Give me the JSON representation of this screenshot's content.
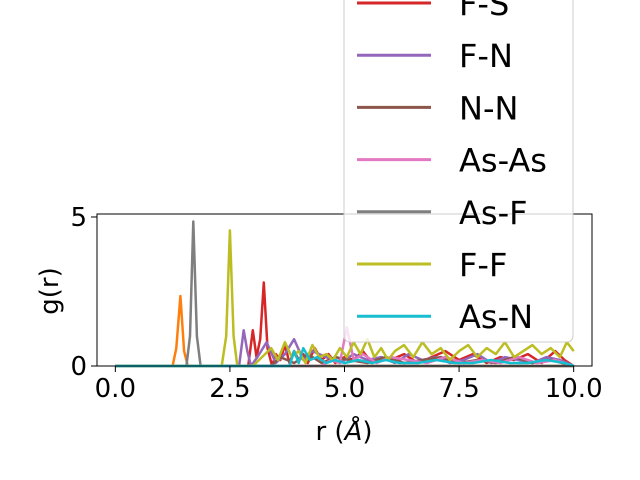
{
  "chart_data": {
    "type": "line",
    "xlabel_main": "r (",
    "xlabel_unit": "Å",
    "xlabel_close": ")",
    "ylabel": "g(r)",
    "xlim": [
      -0.4,
      10.4
    ],
    "ylim": [
      0,
      5.1
    ],
    "xticks": [
      0.0,
      2.5,
      5.0,
      7.5,
      10.0
    ],
    "xtick_labels": [
      "0.0",
      "2.5",
      "5.0",
      "7.5",
      "10.0"
    ],
    "yticks": [
      0,
      5
    ],
    "ytick_labels": [
      "0",
      "5"
    ],
    "grid": false,
    "legend_position": "upper-right",
    "series": [
      {
        "name": "",
        "color": "#1f77b4",
        "x": [
          0.0,
          10.0
        ],
        "y": [
          0.0,
          0.0
        ]
      },
      {
        "name": "",
        "color": "#ff7f0e",
        "x": [
          0.0,
          1.25,
          1.33,
          1.42,
          1.5,
          1.58,
          10.0
        ],
        "y": [
          0.0,
          0.0,
          0.6,
          2.35,
          0.5,
          0.0,
          0.0
        ]
      },
      {
        "name": "F-S",
        "color": "#d62728",
        "x": [
          0.0,
          2.9,
          3.0,
          3.08,
          3.16,
          3.24,
          3.32,
          3.42,
          3.5,
          3.6,
          3.7,
          3.8,
          3.9,
          4.0,
          4.1,
          4.2,
          4.35,
          4.5,
          4.65,
          4.8,
          5.0,
          5.2,
          5.4,
          5.6,
          5.8,
          6.0,
          6.3,
          6.6,
          6.9,
          7.2,
          7.5,
          7.8,
          8.1,
          8.4,
          8.7,
          9.0,
          9.3,
          9.6,
          9.8,
          10.0
        ],
        "y": [
          0.0,
          0.0,
          1.2,
          0.3,
          0.9,
          2.8,
          0.6,
          0.0,
          0.4,
          0.2,
          0.7,
          0.1,
          0.5,
          0.2,
          0.4,
          0.1,
          0.6,
          0.2,
          0.4,
          0.1,
          0.3,
          0.2,
          0.5,
          0.1,
          0.3,
          0.2,
          0.4,
          0.1,
          0.3,
          0.5,
          0.2,
          0.4,
          0.1,
          0.3,
          0.2,
          0.4,
          0.1,
          0.5,
          0.2,
          0.0
        ]
      },
      {
        "name": "F-N",
        "color": "#9467bd",
        "x": [
          0.0,
          2.7,
          2.8,
          2.88,
          2.96,
          3.1,
          3.3,
          3.5,
          3.7,
          3.9,
          4.1,
          4.3,
          4.6,
          4.9,
          5.2,
          5.5,
          5.8,
          6.1,
          6.4,
          6.7,
          7.0,
          7.3,
          7.6,
          7.9,
          8.2,
          8.5,
          8.8,
          9.1,
          9.4,
          9.7,
          10.0
        ],
        "y": [
          0.0,
          0.0,
          1.2,
          0.5,
          0.0,
          0.3,
          0.8,
          0.1,
          0.4,
          0.9,
          0.2,
          0.5,
          0.3,
          0.1,
          0.4,
          0.2,
          0.3,
          0.1,
          0.4,
          0.2,
          0.3,
          0.1,
          0.2,
          0.4,
          0.1,
          0.3,
          0.2,
          0.1,
          0.3,
          0.2,
          0.0
        ]
      },
      {
        "name": "N-N",
        "color": "#8c564b",
        "x": [
          0.0,
          3.4,
          3.6,
          3.9,
          4.2,
          4.5,
          4.8,
          5.1,
          5.5,
          5.9,
          6.3,
          6.7,
          7.1,
          7.5,
          7.9,
          8.3,
          8.7,
          9.1,
          9.5,
          10.0
        ],
        "y": [
          0.0,
          0.0,
          0.3,
          0.1,
          0.4,
          0.1,
          0.3,
          0.2,
          0.1,
          0.3,
          0.1,
          0.2,
          0.3,
          0.1,
          0.2,
          0.1,
          0.3,
          0.1,
          0.2,
          0.0
        ]
      },
      {
        "name": "As-As",
        "color": "#e377c2",
        "x": [
          0.0,
          4.5,
          4.7,
          4.9,
          5.05,
          5.2,
          5.4,
          5.7,
          6.0,
          6.4,
          6.8,
          7.2,
          7.6,
          8.0,
          8.4,
          8.8,
          9.2,
          9.6,
          10.0
        ],
        "y": [
          0.0,
          0.0,
          0.2,
          0.1,
          1.3,
          0.2,
          0.4,
          0.1,
          0.3,
          0.2,
          0.1,
          0.3,
          0.1,
          0.2,
          0.1,
          0.3,
          0.1,
          0.2,
          0.0
        ]
      },
      {
        "name": "As-F",
        "color": "#7f7f7f",
        "x": [
          0.0,
          1.55,
          1.63,
          1.7,
          1.78,
          1.86,
          10.0
        ],
        "y": [
          0.0,
          0.0,
          1.0,
          4.85,
          1.0,
          0.0,
          0.0
        ]
      },
      {
        "name": "F-F",
        "color": "#bcbd22",
        "x": [
          0.0,
          2.32,
          2.42,
          2.5,
          2.58,
          2.66,
          3.0,
          3.2,
          3.4,
          3.55,
          3.7,
          3.85,
          4.0,
          4.15,
          4.3,
          4.45,
          4.6,
          4.75,
          4.9,
          5.05,
          5.2,
          5.35,
          5.5,
          5.65,
          5.8,
          5.95,
          6.1,
          6.3,
          6.5,
          6.7,
          6.9,
          7.1,
          7.3,
          7.5,
          7.7,
          7.9,
          8.1,
          8.3,
          8.5,
          8.7,
          8.9,
          9.1,
          9.3,
          9.5,
          9.7,
          9.85,
          10.0
        ],
        "y": [
          0.0,
          0.0,
          1.0,
          4.55,
          1.0,
          0.0,
          0.0,
          0.3,
          0.6,
          0.2,
          0.8,
          0.3,
          0.5,
          0.1,
          0.7,
          0.3,
          0.4,
          0.2,
          0.6,
          0.3,
          0.8,
          0.4,
          0.9,
          0.3,
          0.6,
          0.2,
          0.5,
          0.7,
          0.3,
          0.8,
          0.4,
          0.6,
          0.2,
          0.5,
          0.7,
          0.3,
          0.6,
          0.4,
          0.8,
          0.3,
          0.5,
          0.7,
          0.4,
          0.6,
          0.3,
          0.8,
          0.5
        ]
      },
      {
        "name": "As-N",
        "color": "#17becf",
        "x": [
          0.0,
          3.8,
          3.9,
          4.0,
          4.1,
          4.25,
          4.4,
          4.6,
          4.8,
          5.0,
          5.3,
          5.6,
          5.9,
          6.2,
          6.6,
          7.0,
          7.4,
          7.8,
          8.2,
          8.6,
          9.0,
          9.4,
          9.8,
          10.0
        ],
        "y": [
          0.0,
          0.0,
          0.5,
          0.1,
          0.6,
          0.2,
          0.3,
          0.1,
          0.2,
          0.1,
          0.2,
          0.1,
          0.2,
          0.1,
          0.1,
          0.2,
          0.1,
          0.1,
          0.2,
          0.1,
          0.1,
          0.2,
          0.1,
          0.0
        ]
      }
    ]
  }
}
